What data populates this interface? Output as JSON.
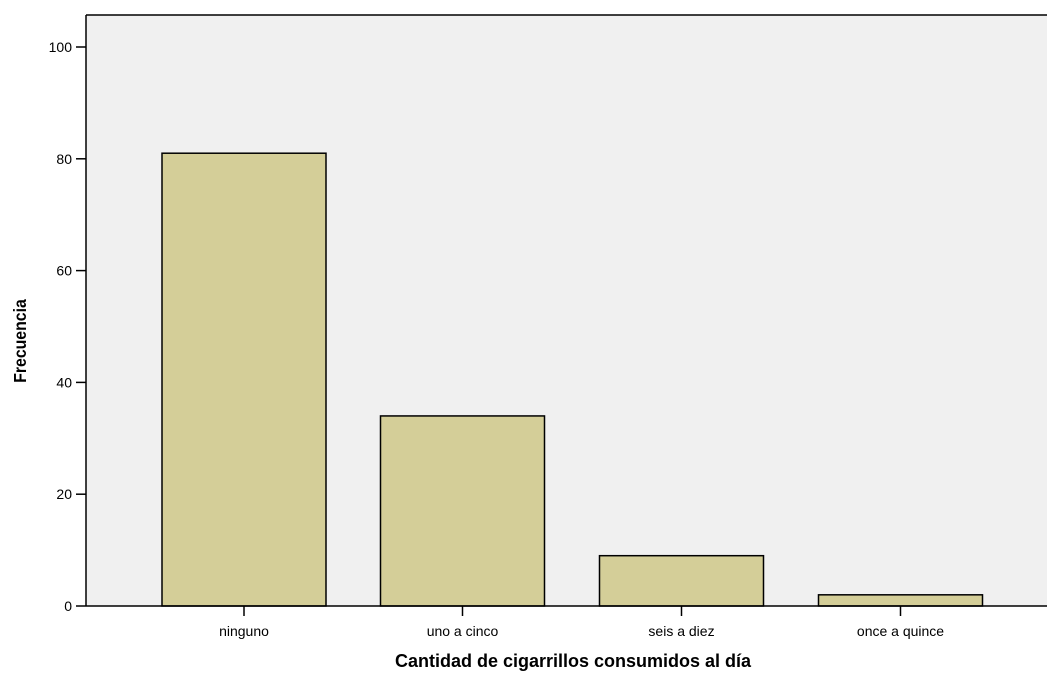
{
  "chart_data": {
    "type": "bar",
    "categories": [
      "ninguno",
      "uno a cinco",
      "seis a diez",
      "once a quince"
    ],
    "values": [
      81,
      34,
      9,
      2
    ],
    "title": "",
    "xlabel": "Cantidad de cigarrillos consumidos al día",
    "ylabel": "Frecuencia",
    "ylim": [
      0,
      105
    ],
    "yticks": [
      0,
      20,
      40,
      60,
      80,
      100
    ],
    "grid": false,
    "legend": "none",
    "colors": {
      "bar_fill": "#d4ce98",
      "bar_stroke": "#000000",
      "plot_background": "#f0f0f0",
      "axis": "#000000"
    }
  }
}
